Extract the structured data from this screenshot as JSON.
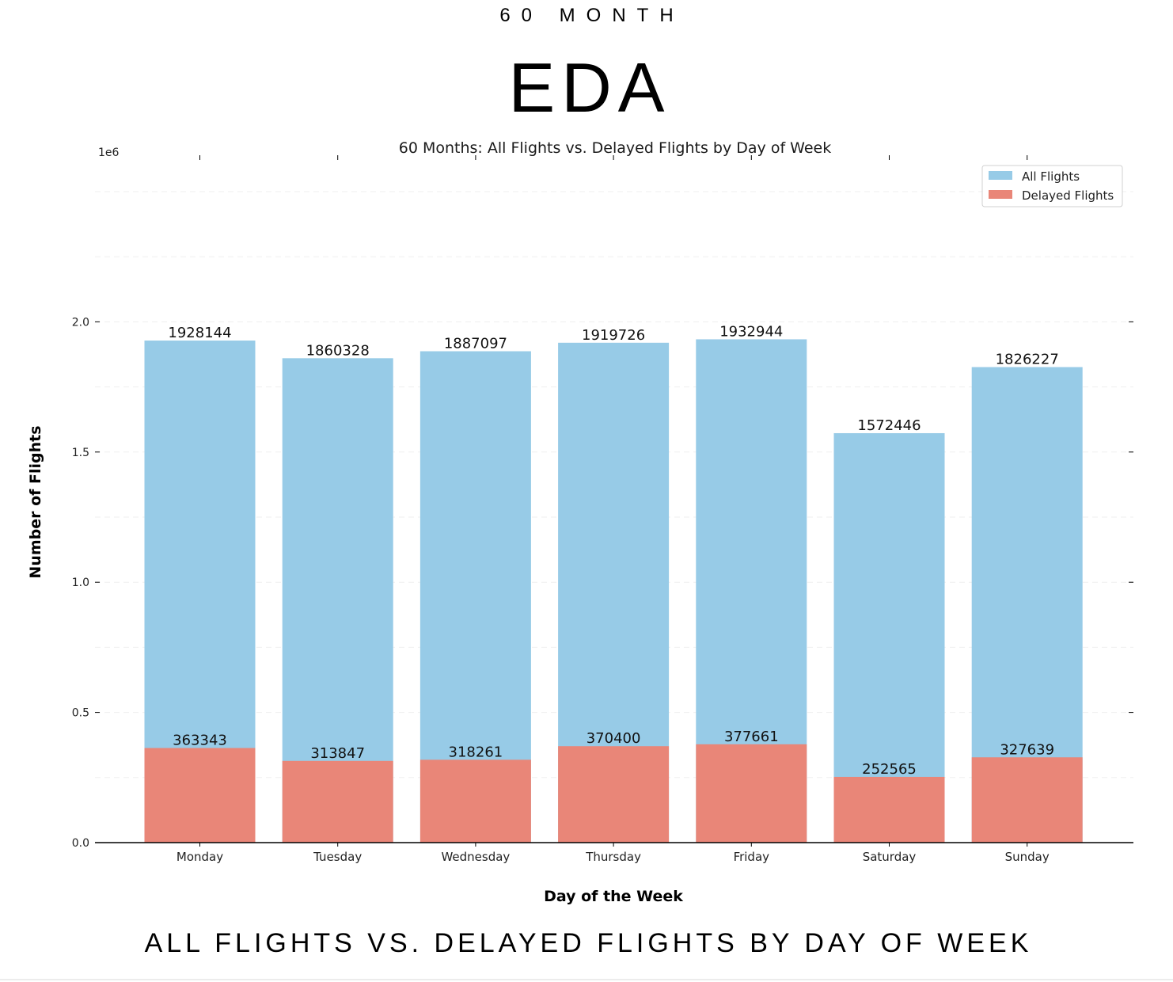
{
  "page": {
    "kicker": "60 MONTH",
    "headline": "EDA",
    "caption": "ALL FLIGHTS VS. DELAYED FLIGHTS BY DAY OF WEEK"
  },
  "chart_data": {
    "type": "bar",
    "title": "60 Months: All Flights vs. Delayed Flights by Day of Week",
    "xlabel": "Day of the Week",
    "ylabel": "Number of Flights",
    "y_scale_label": "1e6",
    "categories": [
      "Monday",
      "Tuesday",
      "Wednesday",
      "Thursday",
      "Friday",
      "Saturday",
      "Sunday"
    ],
    "series": [
      {
        "name": "All Flights",
        "color": "#97cbe7",
        "values": [
          1928144,
          1860328,
          1887097,
          1919726,
          1932944,
          1572446,
          1826227
        ]
      },
      {
        "name": "Delayed Flights",
        "color": "#e98678",
        "values": [
          363343,
          313847,
          318261,
          370400,
          377661,
          252565,
          327639
        ]
      }
    ],
    "ylim": [
      0,
      2500000
    ],
    "yticks": [
      {
        "value": 0,
        "label": "0.0"
      },
      {
        "value": 500000,
        "label": "0.5"
      },
      {
        "value": 1000000,
        "label": "1.0"
      },
      {
        "value": 1500000,
        "label": "1.5"
      },
      {
        "value": 2000000,
        "label": "2.0"
      }
    ],
    "grid": true,
    "legend_position": "top-right",
    "bar_labels": true
  }
}
